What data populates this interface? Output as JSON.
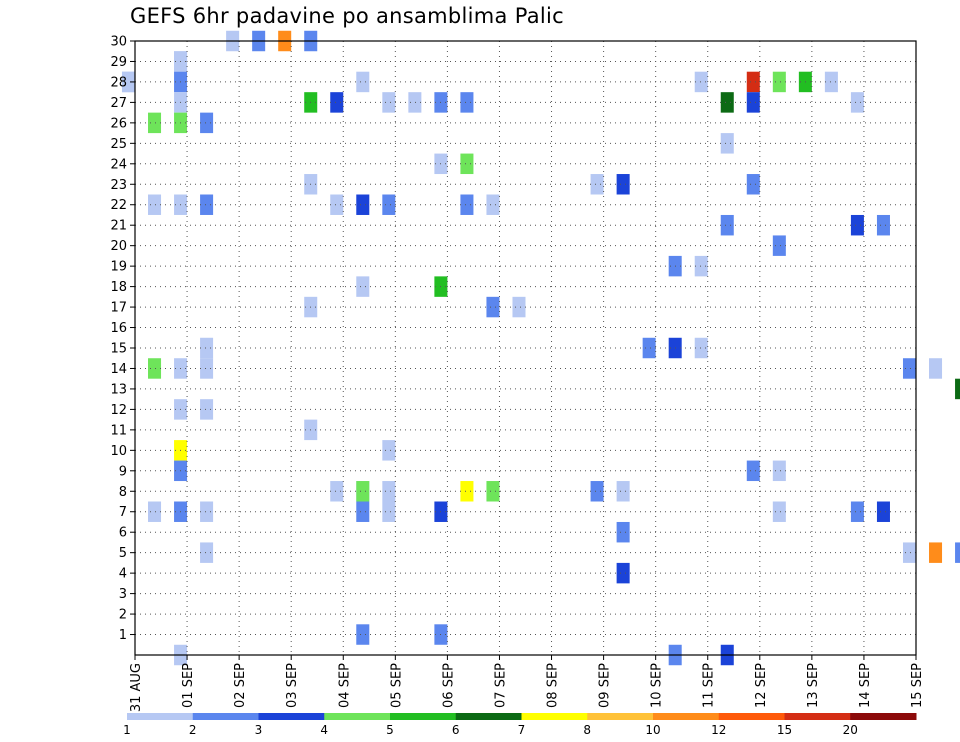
{
  "chart_data": {
    "type": "heatmap",
    "title": "GEFS 6hr padavine po ansamblima Palic",
    "x_tick_labels": [
      "31 AUG",
      "01 SEP",
      "02 SEP",
      "03 SEP",
      "04 SEP",
      "05 SEP",
      "06 SEP",
      "07 SEP",
      "08 SEP",
      "09 SEP",
      "10 SEP",
      "11 SEP",
      "12 SEP",
      "13 SEP",
      "14 SEP",
      "15 SEP"
    ],
    "y_tick_labels": [
      "1",
      "2",
      "3",
      "4",
      "5",
      "6",
      "7",
      "8",
      "9",
      "10",
      "11",
      "12",
      "13",
      "14",
      "15",
      "16",
      "17",
      "18",
      "19",
      "20",
      "21",
      "22",
      "23",
      "24",
      "25",
      "26",
      "27",
      "28",
      "29",
      "30"
    ],
    "x_unit": "6-hour step from 31 AUG 00Z",
    "y_unit": "ensemble member",
    "xlim": [
      0,
      60
    ],
    "ylim": [
      0,
      30
    ],
    "grid": true,
    "colorbar": {
      "levels": [
        "1",
        "2",
        "3",
        "4",
        "5",
        "6",
        "7",
        "8",
        "10",
        "12",
        "15",
        "20"
      ],
      "colors": [
        "#b6c8f3",
        "#5b86ee",
        "#1b43d8",
        "#6ee45a",
        "#22be22",
        "#0c6a14",
        "#ffff00",
        "#ffc238",
        "#ff8c1a",
        "#ff5a0a",
        "#d42d14",
        "#8c0a0a"
      ]
    },
    "cells": [
      [
        3,
        30,
        1
      ],
      [
        4,
        30,
        2
      ],
      [
        5,
        30,
        9
      ],
      [
        6,
        30,
        2
      ],
      [
        1,
        29,
        1
      ],
      [
        1,
        29,
        1
      ],
      [
        -1,
        28,
        1
      ],
      [
        -1,
        28,
        1
      ],
      [
        1,
        28,
        2
      ],
      [
        8,
        28,
        1
      ],
      [
        21,
        28,
        1
      ],
      [
        23,
        28,
        11
      ],
      [
        24,
        28,
        4
      ],
      [
        25,
        28,
        5
      ],
      [
        26,
        28,
        1
      ],
      [
        1,
        27,
        1
      ],
      [
        6,
        27,
        5
      ],
      [
        7,
        27,
        3
      ],
      [
        9,
        27,
        1
      ],
      [
        10,
        27,
        1
      ],
      [
        11,
        27,
        2
      ],
      [
        12,
        27,
        2
      ],
      [
        22,
        27,
        6
      ],
      [
        23,
        27,
        3
      ],
      [
        27,
        27,
        1
      ],
      [
        0,
        26,
        4
      ],
      [
        1,
        26,
        4
      ],
      [
        2,
        26,
        2
      ],
      [
        22,
        25,
        1
      ],
      [
        11,
        24,
        1
      ],
      [
        12,
        24,
        4
      ],
      [
        6,
        23,
        1
      ],
      [
        17,
        23,
        1
      ],
      [
        18,
        23,
        3
      ],
      [
        23,
        23,
        2
      ],
      [
        0,
        22,
        1
      ],
      [
        1,
        22,
        1
      ],
      [
        2,
        22,
        2
      ],
      [
        7,
        22,
        1
      ],
      [
        8,
        22,
        3
      ],
      [
        9,
        22,
        2
      ],
      [
        12,
        22,
        2
      ],
      [
        13,
        22,
        1
      ],
      [
        22,
        21,
        2
      ],
      [
        27,
        21,
        3
      ],
      [
        28,
        21,
        2
      ],
      [
        24,
        20,
        2
      ],
      [
        20,
        19,
        2
      ],
      [
        21,
        19,
        1
      ],
      [
        8,
        18,
        1
      ],
      [
        11,
        18,
        5
      ],
      [
        6,
        17,
        1
      ],
      [
        13,
        17,
        2
      ],
      [
        14,
        17,
        1
      ],
      [
        19,
        15,
        2
      ],
      [
        20,
        15,
        3
      ],
      [
        21,
        15,
        1
      ],
      [
        2,
        15,
        1
      ],
      [
        0,
        14,
        4
      ],
      [
        1,
        14,
        1
      ],
      [
        2,
        14,
        1
      ],
      [
        29,
        14,
        2
      ],
      [
        30,
        14,
        1
      ],
      [
        31,
        13,
        6
      ],
      [
        1,
        12,
        1
      ],
      [
        2,
        12,
        1
      ],
      [
        6,
        11,
        1
      ],
      [
        1,
        10,
        7
      ],
      [
        9,
        10,
        1
      ],
      [
        23,
        9,
        2
      ],
      [
        24,
        9,
        1
      ],
      [
        1,
        9,
        2
      ],
      [
        7,
        8,
        1
      ],
      [
        8,
        8,
        1
      ],
      [
        8,
        8,
        4
      ],
      [
        9,
        8,
        1
      ],
      [
        12,
        8,
        7
      ],
      [
        13,
        8,
        4
      ],
      [
        17,
        8,
        2
      ],
      [
        18,
        8,
        1
      ],
      [
        0,
        7,
        1
      ],
      [
        1,
        7,
        2
      ],
      [
        2,
        7,
        1
      ],
      [
        8,
        7,
        2
      ],
      [
        9,
        7,
        1
      ],
      [
        11,
        7,
        3
      ],
      [
        24,
        7,
        1
      ],
      [
        27,
        7,
        2
      ],
      [
        28,
        7,
        3
      ],
      [
        18,
        6,
        2
      ],
      [
        2,
        5,
        1
      ],
      [
        29,
        5,
        1
      ],
      [
        30,
        5,
        9
      ],
      [
        31,
        5,
        2
      ],
      [
        18,
        4,
        3
      ],
      [
        8,
        1,
        2
      ],
      [
        11,
        1,
        2
      ],
      [
        1,
        0,
        1
      ],
      [
        20,
        0,
        2
      ],
      [
        22,
        0,
        3
      ]
    ]
  }
}
